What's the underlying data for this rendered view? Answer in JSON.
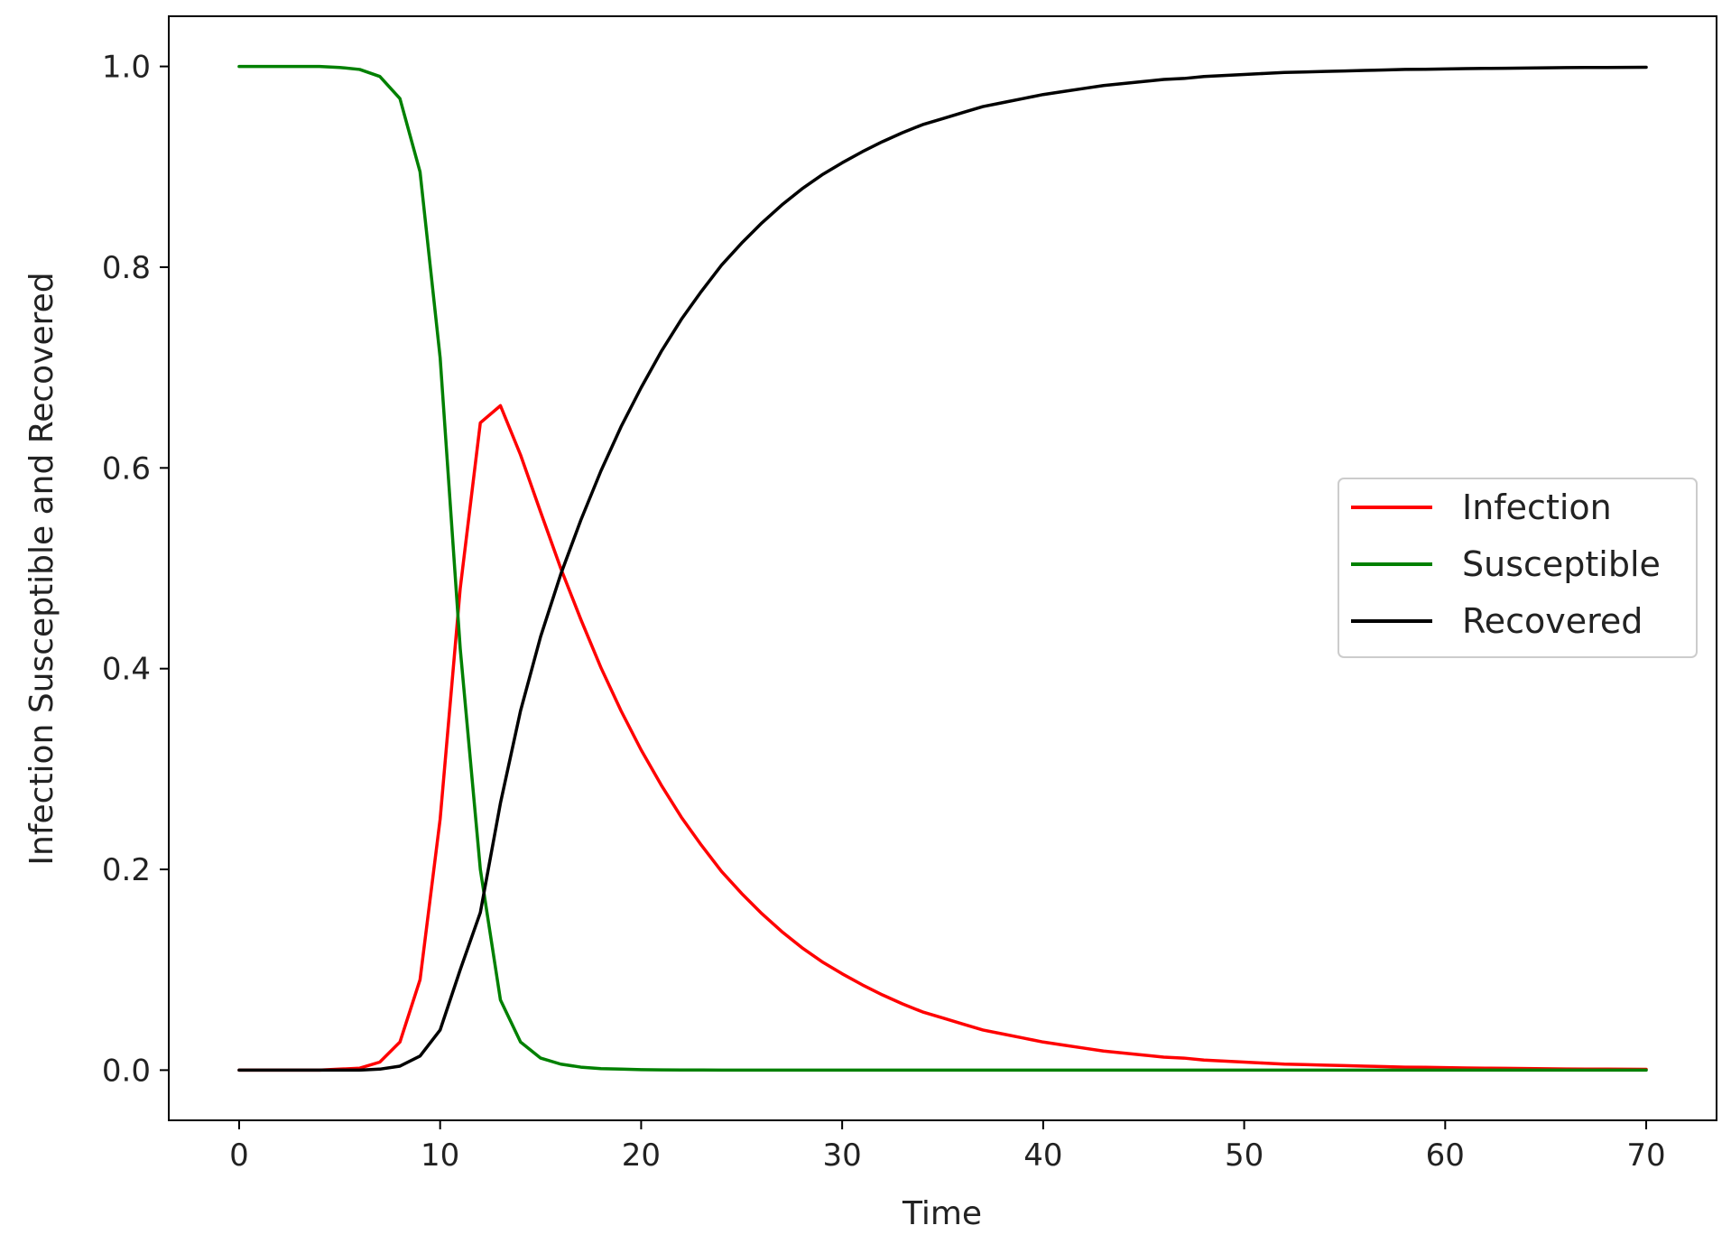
{
  "chart_data": {
    "type": "line",
    "xlabel": "Time",
    "ylabel": "Infection Susceptible and Recovered",
    "xlim": [
      -3.5,
      73.5
    ],
    "ylim": [
      -0.05,
      1.05
    ],
    "xticks": [
      "0",
      "10",
      "20",
      "30",
      "40",
      "50",
      "60",
      "70"
    ],
    "xtick_values": [
      0,
      10,
      20,
      30,
      40,
      50,
      60,
      70
    ],
    "yticks": [
      "0.0",
      "0.2",
      "0.4",
      "0.6",
      "0.8",
      "1.0"
    ],
    "ytick_values": [
      0,
      0.2,
      0.4,
      0.6,
      0.8,
      1.0
    ],
    "grid": false,
    "legend_position": "center-right",
    "x": [
      0,
      1,
      2,
      3,
      4,
      5,
      6,
      7,
      8,
      9,
      10,
      11,
      12,
      13,
      14,
      15,
      16,
      17,
      18,
      19,
      20,
      21,
      22,
      23,
      24,
      25,
      26,
      27,
      28,
      29,
      30,
      31,
      32,
      33,
      34,
      35,
      36,
      37,
      38,
      39,
      40,
      41,
      42,
      43,
      44,
      45,
      46,
      47,
      48,
      49,
      50,
      51,
      52,
      53,
      54,
      55,
      56,
      57,
      58,
      59,
      60,
      61,
      62,
      63,
      64,
      65,
      66,
      67,
      68,
      69,
      70
    ],
    "series": [
      {
        "name": "Infection",
        "color": "#ff0000",
        "values": [
          0.0,
          0.0,
          0.0,
          0.0,
          0.0,
          0.001,
          0.002,
          0.008,
          0.028,
          0.09,
          0.25,
          0.48,
          0.645,
          0.662,
          0.613,
          0.556,
          0.5,
          0.449,
          0.401,
          0.358,
          0.319,
          0.284,
          0.252,
          0.224,
          0.198,
          0.176,
          0.156,
          0.138,
          0.122,
          0.108,
          0.096,
          0.085,
          0.075,
          0.066,
          0.058,
          0.052,
          0.046,
          0.04,
          0.036,
          0.032,
          0.028,
          0.025,
          0.022,
          0.019,
          0.017,
          0.015,
          0.013,
          0.012,
          0.01,
          0.009,
          0.008,
          0.007,
          0.006,
          0.0055,
          0.005,
          0.0045,
          0.004,
          0.0035,
          0.003,
          0.0028,
          0.0025,
          0.0022,
          0.002,
          0.0018,
          0.0016,
          0.0014,
          0.0012,
          0.0011,
          0.001,
          0.0009,
          0.0008
        ]
      },
      {
        "name": "Susceptible",
        "color": "#008000",
        "values": [
          1.0,
          1.0,
          1.0,
          1.0,
          1.0,
          0.999,
          0.997,
          0.99,
          0.968,
          0.895,
          0.71,
          0.42,
          0.2,
          0.07,
          0.028,
          0.012,
          0.006,
          0.003,
          0.0015,
          0.001,
          0.0005,
          0.0003,
          0.0002,
          0.0001,
          0.0,
          0.0,
          0.0,
          0.0,
          0.0,
          0.0,
          0.0,
          0.0,
          0.0,
          0.0,
          0.0,
          0.0,
          0.0,
          0.0,
          0.0,
          0.0,
          0.0,
          0.0,
          0.0,
          0.0,
          0.0,
          0.0,
          0.0,
          0.0,
          0.0,
          0.0,
          0.0,
          0.0,
          0.0,
          0.0,
          0.0,
          0.0,
          0.0,
          0.0,
          0.0,
          0.0,
          0.0,
          0.0,
          0.0,
          0.0,
          0.0,
          0.0,
          0.0,
          0.0,
          0.0,
          0.0,
          0.0
        ]
      },
      {
        "name": "Recovered",
        "color": "#000000",
        "values": [
          0.0,
          0.0,
          0.0,
          0.0,
          0.0,
          0.0,
          0.0,
          0.001,
          0.004,
          0.014,
          0.04,
          0.1,
          0.157,
          0.266,
          0.358,
          0.432,
          0.494,
          0.548,
          0.597,
          0.641,
          0.68,
          0.716,
          0.748,
          0.776,
          0.802,
          0.824,
          0.844,
          0.862,
          0.878,
          0.892,
          0.904,
          0.915,
          0.925,
          0.934,
          0.942,
          0.948,
          0.954,
          0.96,
          0.964,
          0.968,
          0.972,
          0.975,
          0.978,
          0.981,
          0.983,
          0.985,
          0.987,
          0.988,
          0.99,
          0.991,
          0.992,
          0.993,
          0.994,
          0.9945,
          0.995,
          0.9955,
          0.996,
          0.9965,
          0.997,
          0.9972,
          0.9975,
          0.9978,
          0.998,
          0.9982,
          0.9984,
          0.9986,
          0.9988,
          0.9989,
          0.999,
          0.9991,
          0.9992
        ]
      }
    ]
  }
}
